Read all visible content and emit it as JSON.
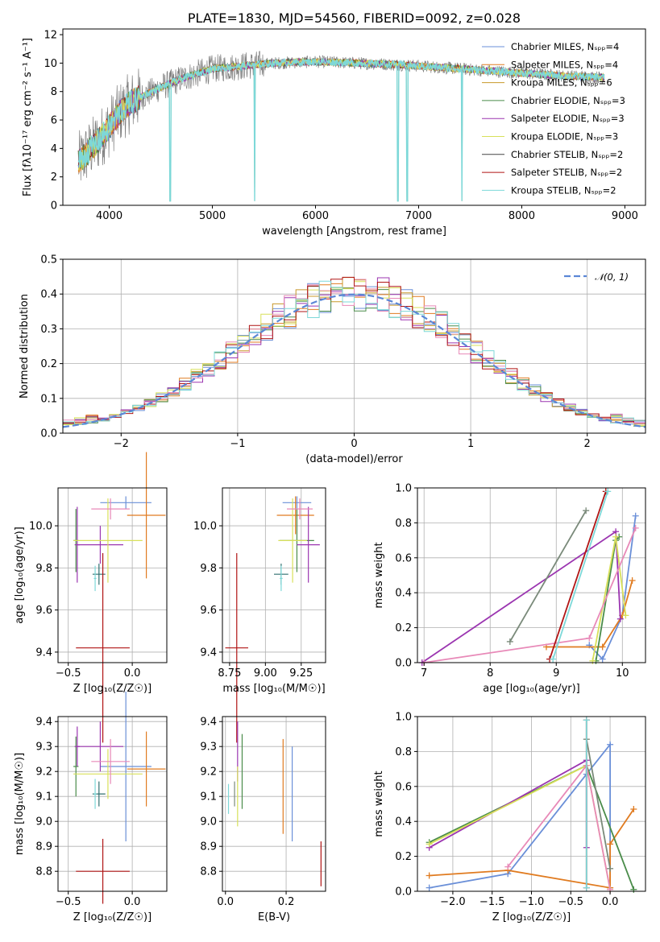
{
  "colors": [
    "#6a8fd8",
    "#e07b20",
    "#c8982a",
    "#4a8c4a",
    "#9b35b0",
    "#d8e05a",
    "#444444",
    "#b01515",
    "#7dd8d8"
  ],
  "colors2": [
    "#6a8fd8",
    "#e07b20",
    "#4a8c4a",
    "#9b35b0",
    "#d8e05a",
    "#e889b8",
    "#7a8a7a",
    "#b01515",
    "#7dd8d8"
  ],
  "chart_data": [
    {
      "id": "spectrum",
      "type": "line",
      "title": "PLATE=1830, MJD=54560, FIBERID=0092, z=0.028",
      "xlabel": "wavelength [Angstrom, rest frame]",
      "ylabel": "Flux [fλ10⁻¹⁷ erg cm⁻² s⁻¹ A⁻¹]",
      "xlim": [
        3550,
        9200
      ],
      "ylim": [
        0,
        12.4
      ],
      "xticks": [
        4000,
        5000,
        6000,
        7000,
        8000,
        9000
      ],
      "yticks": [
        0,
        2,
        4,
        6,
        8,
        10,
        12
      ],
      "legend": "top-right",
      "legend_entries": [
        "Chabrier MILES, Nₛₚₚ=4",
        "Salpeter MILES, Nₛₚₚ=4",
        "Kroupa MILES, Nₛₚₚ=6",
        "Chabrier ELODIE, Nₛₚₚ=3",
        "Salpeter ELODIE, Nₛₚₚ=3",
        "Kroupa ELODIE, Nₛₚₚ=3",
        "Chabrier STELIB, Nₛₚₚ=2",
        "Salpeter STELIB, Nₛₚₚ=2",
        "Kroupa STELIB, Nₛₚₚ=2"
      ],
      "continuum": {
        "x": [
          3700,
          3800,
          3900,
          4000,
          4100,
          4200,
          4300,
          4500,
          4700,
          5000,
          5300,
          5600,
          6000,
          6400,
          6800,
          7200,
          7600,
          8000,
          8400,
          8800
        ],
        "y": [
          3.0,
          3.8,
          4.6,
          5.5,
          6.5,
          7.2,
          7.6,
          8.3,
          8.9,
          9.6,
          9.8,
          10.0,
          10.1,
          10.0,
          9.9,
          9.7,
          9.5,
          9.3,
          9.1,
          9.0
        ]
      },
      "absorption_features_x": [
        4590,
        5410,
        6800,
        6890,
        7420
      ]
    },
    {
      "id": "residuals",
      "type": "histogram",
      "xlabel": "(data-model)/error",
      "ylabel": "Normed distribution",
      "xlim": [
        -2.5,
        2.5
      ],
      "ylim": [
        0,
        0.5
      ],
      "xticks": [
        -2,
        -1,
        0,
        1,
        2
      ],
      "yticks": [
        0.0,
        0.1,
        0.2,
        0.3,
        0.4,
        0.5
      ],
      "legend": "top-right",
      "legend_entries": [
        "𝒩(0, 1)"
      ],
      "bin_width": 0.1
    },
    {
      "id": "age-vs-Z",
      "type": "scatter",
      "xlabel": "Z [log₁₀(Z/Z☉)]",
      "ylabel": "age  [log₁₀(age/yr)]",
      "xlim": [
        -0.58,
        0.27
      ],
      "ylim": [
        9.35,
        10.18
      ],
      "xticks": [
        -0.5,
        0.0
      ],
      "yticks": [
        9.4,
        9.6,
        9.8,
        10.0
      ],
      "points": [
        {
          "x": -0.05,
          "xerr": 0.2,
          "y": 10.11,
          "yerr": 0.03
        },
        {
          "x": 0.11,
          "xerr": 0.15,
          "y": 10.05,
          "yerr": 0.3
        },
        {
          "x": -0.44,
          "xerr": 0.02,
          "y": 9.93,
          "yerr": 0.15
        },
        {
          "x": -0.43,
          "xerr": 0.02,
          "y": 9.91,
          "yerr": 0.18
        },
        {
          "x": -0.25,
          "xerr": 0.18,
          "y": 9.91,
          "yerr": 0.09
        },
        {
          "x": -0.19,
          "xerr": 0.27,
          "y": 9.93,
          "yerr": 0.2
        },
        {
          "x": -0.17,
          "xerr": 0.15,
          "y": 10.08,
          "yerr": 0.05
        },
        {
          "x": -0.26,
          "xerr": 0.05,
          "y": 9.77,
          "yerr": 0.05
        },
        {
          "x": -0.23,
          "xerr": 0.21,
          "y": 9.42,
          "yerr": 0.45
        },
        {
          "x": -0.29,
          "xerr": 0.01,
          "y": 9.75,
          "yerr": 0.06
        }
      ]
    },
    {
      "id": "age-vs-mass",
      "type": "scatter",
      "xlabel": "mass [log₁₀(M/M☉)]",
      "ylabel": "",
      "xlim": [
        8.7,
        9.42
      ],
      "ylim": [
        9.35,
        10.18
      ],
      "xticks": [
        8.75,
        9.0,
        9.25
      ],
      "yticks": [
        9.4,
        9.6,
        9.8,
        10.0
      ],
      "points": [
        {
          "x": 9.22,
          "xerr": 0.1,
          "y": 10.11,
          "yerr": 0.03
        },
        {
          "x": 9.21,
          "xerr": 0.13,
          "y": 10.05,
          "yerr": 0.09
        },
        {
          "x": 9.22,
          "xerr": 0.12,
          "y": 9.93,
          "yerr": 0.15
        },
        {
          "x": 9.3,
          "xerr": 0.08,
          "y": 9.91,
          "yerr": 0.18
        },
        {
          "x": 9.19,
          "xerr": 0.1,
          "y": 9.93,
          "yerr": 0.2
        },
        {
          "x": 9.24,
          "xerr": 0.09,
          "y": 10.08,
          "yerr": 0.05
        },
        {
          "x": 9.11,
          "xerr": 0.05,
          "y": 9.77,
          "yerr": 0.05
        },
        {
          "x": 8.8,
          "xerr": 0.08,
          "y": 9.42,
          "yerr": 0.45
        },
        {
          "x": 9.11,
          "xerr": 0.01,
          "y": 9.75,
          "yerr": 0.06
        }
      ]
    },
    {
      "id": "massweight-vs-age",
      "type": "line",
      "xlabel": "age  [log₁₀(age/yr)]",
      "ylabel": "mass weight",
      "xlim": [
        6.9,
        10.35
      ],
      "ylim": [
        0,
        1
      ],
      "xticks": [
        7,
        8,
        9,
        10
      ],
      "yticks": [
        0.0,
        0.2,
        0.4,
        0.6,
        0.8,
        1.0
      ],
      "series": [
        {
          "x": [
            9.5,
            9.7,
            10.0,
            10.2
          ],
          "y": [
            0.1,
            0.02,
            0.27,
            0.84
          ]
        },
        {
          "x": [
            8.85,
            9.7,
            10.0,
            10.15
          ],
          "y": [
            0.09,
            0.09,
            0.27,
            0.47
          ]
        },
        {
          "x": [
            9.6,
            9.9,
            9.95
          ],
          "y": [
            0.01,
            0.7,
            0.72
          ]
        },
        {
          "x": [
            6.97,
            9.9,
            9.97
          ],
          "y": [
            0.0,
            0.75,
            0.25
          ]
        },
        {
          "x": [
            9.55,
            9.9,
            10.05
          ],
          "y": [
            0.01,
            0.72,
            0.27
          ]
        },
        {
          "x": [
            7.0,
            9.5,
            10.2
          ],
          "y": [
            0.0,
            0.14,
            0.77
          ]
        },
        {
          "x": [
            8.3,
            9.45
          ],
          "y": [
            0.12,
            0.87
          ]
        },
        {
          "x": [
            8.9,
            9.75
          ],
          "y": [
            0.02,
            0.98
          ]
        },
        {
          "x": [
            8.95,
            9.78
          ],
          "y": [
            0.02,
            0.98
          ]
        }
      ]
    },
    {
      "id": "mass-vs-Z",
      "type": "scatter",
      "xlabel": "Z [log₁₀(Z/Z☉)]",
      "ylabel": "mass [log₁₀(M/M☉)]",
      "xlim": [
        -0.58,
        0.27
      ],
      "ylim": [
        8.72,
        9.42
      ],
      "xticks": [
        -0.5,
        0.0
      ],
      "yticks": [
        8.8,
        8.9,
        9.0,
        9.1,
        9.2,
        9.3,
        9.4
      ],
      "points": [
        {
          "x": -0.05,
          "xerr": 0.2,
          "y": 9.22,
          "yerr": 0.3
        },
        {
          "x": 0.11,
          "xerr": 0.15,
          "y": 9.21,
          "yerr": 0.15
        },
        {
          "x": -0.44,
          "xerr": 0.02,
          "y": 9.22,
          "yerr": 0.12
        },
        {
          "x": -0.43,
          "xerr": 0.02,
          "y": 9.3,
          "yerr": 0.08
        },
        {
          "x": -0.25,
          "xerr": 0.18,
          "y": 9.3,
          "yerr": 0.1
        },
        {
          "x": -0.19,
          "xerr": 0.27,
          "y": 9.19,
          "yerr": 0.1
        },
        {
          "x": -0.17,
          "xerr": 0.15,
          "y": 9.24,
          "yerr": 0.09
        },
        {
          "x": -0.26,
          "xerr": 0.05,
          "y": 9.11,
          "yerr": 0.05
        },
        {
          "x": -0.23,
          "xerr": 0.21,
          "y": 8.8,
          "yerr": 0.13
        },
        {
          "x": -0.29,
          "xerr": 0.01,
          "y": 9.11,
          "yerr": 0.06
        }
      ]
    },
    {
      "id": "mass-vs-ebv",
      "type": "scatter",
      "xlabel": "E(B-V)",
      "ylabel": "",
      "xlim": [
        -0.01,
        0.33
      ],
      "ylim": [
        8.72,
        9.42
      ],
      "xticks": [
        0.0,
        0.2
      ],
      "yticks": [
        8.8,
        8.9,
        9.0,
        9.1,
        9.2,
        9.3,
        9.4
      ],
      "points": [
        {
          "x": 0.22,
          "xerr": 0.0,
          "y": 9.11,
          "yerr": 0.19
        },
        {
          "x": 0.19,
          "xerr": 0.0,
          "y": 9.14,
          "yerr": 0.19
        },
        {
          "x": 0.055,
          "xerr": 0.0,
          "y": 9.2,
          "yerr": 0.15
        },
        {
          "x": 0.04,
          "xerr": 0.0,
          "y": 9.28,
          "yerr": 0.12
        },
        {
          "x": 0.04,
          "xerr": 0.0,
          "y": 9.1,
          "yerr": 0.12
        },
        {
          "x": 0.03,
          "xerr": 0.0,
          "y": 9.11,
          "yerr": 0.05
        },
        {
          "x": 0.01,
          "xerr": 0.0,
          "y": 9.09,
          "yerr": 0.06
        },
        {
          "x": 0.315,
          "xerr": 0.0,
          "y": 8.83,
          "yerr": 0.09
        }
      ]
    },
    {
      "id": "massweight-vs-Z",
      "type": "line",
      "xlabel": "Z [log₁₀(Z/Z☉)]",
      "ylabel": "mass weight",
      "xlim": [
        -2.45,
        0.45
      ],
      "ylim": [
        0,
        1
      ],
      "xticks": [
        -2.0,
        -1.5,
        -1.0,
        -0.5,
        0.0
      ],
      "yticks": [
        0.0,
        0.2,
        0.4,
        0.6,
        0.8,
        1.0
      ],
      "series": [
        {
          "x": [
            -2.3,
            -1.3,
            -0.3,
            0.0,
            0.0
          ],
          "y": [
            0.02,
            0.1,
            0.67,
            0.84,
            0.02
          ]
        },
        {
          "x": [
            -2.3,
            -1.3,
            0.0,
            0.0,
            0.3
          ],
          "y": [
            0.09,
            0.12,
            0.02,
            0.27,
            0.47
          ]
        },
        {
          "x": [
            -2.3,
            -0.3,
            0.3
          ],
          "y": [
            0.28,
            0.72,
            0.01
          ]
        },
        {
          "x": [
            -2.3,
            -0.3,
            -0.3
          ],
          "y": [
            0.25,
            0.75,
            0.25
          ]
        },
        {
          "x": [
            -2.3,
            -0.3,
            0.0
          ],
          "y": [
            0.27,
            0.72,
            0.01
          ]
        },
        {
          "x": [
            -1.3,
            -0.3,
            0.0
          ],
          "y": [
            0.14,
            0.72,
            0.01
          ]
        },
        {
          "x": [
            -0.3,
            0.0
          ],
          "y": [
            0.87,
            0.13
          ]
        },
        {
          "x": [
            -0.3,
            -0.3
          ],
          "y": [
            0.02,
            0.98
          ]
        },
        {
          "x": [
            -0.3,
            -0.3
          ],
          "y": [
            0.02,
            0.98
          ]
        }
      ]
    }
  ]
}
